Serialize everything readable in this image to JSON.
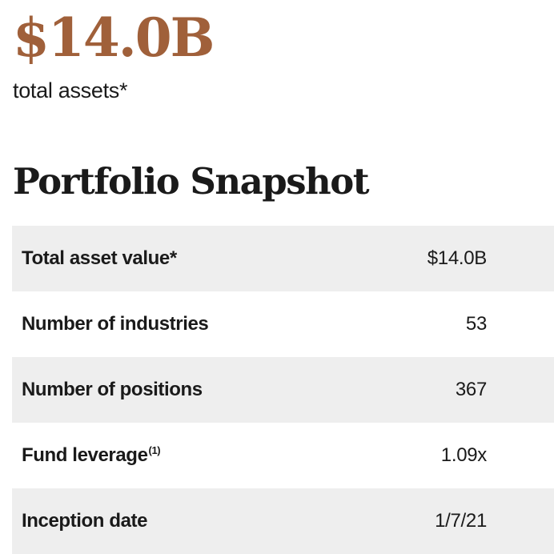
{
  "hero": {
    "value": "$14.0B",
    "label": "total assets*"
  },
  "section_title": "Portfolio Snapshot",
  "snapshot_rows": [
    {
      "label": "Total asset value*",
      "superscript": "",
      "value": "$14.0B"
    },
    {
      "label": "Number of industries",
      "superscript": "",
      "value": "53"
    },
    {
      "label": "Number of positions",
      "superscript": "",
      "value": "367"
    },
    {
      "label": "Fund leverage",
      "superscript": "(1)",
      "value": "1.09x"
    },
    {
      "label": "Inception date",
      "superscript": "",
      "value": "1/7/21"
    }
  ],
  "colors": {
    "hero_value": "#a0603a",
    "text": "#1a1a1a",
    "row_shade": "#eeeeee"
  }
}
